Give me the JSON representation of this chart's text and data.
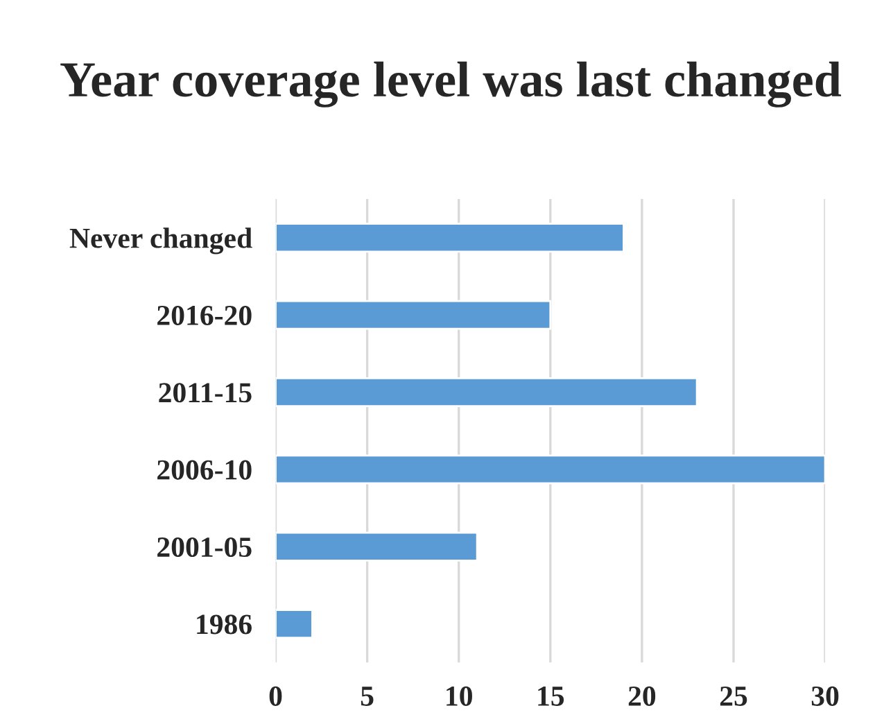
{
  "chart_data": {
    "type": "bar",
    "orientation": "horizontal",
    "title": "Year coverage level was last changed",
    "categories": [
      "Never changed",
      "2016-20",
      "2011-15",
      "2006-10",
      "2001-05",
      "1986"
    ],
    "values": [
      19,
      15,
      23,
      30,
      11,
      2
    ],
    "color": "#5b9bd5",
    "xlim": [
      0,
      30
    ],
    "xticks": [
      0,
      5,
      10,
      15,
      20,
      25,
      30
    ],
    "grid": "x",
    "legend": false
  }
}
